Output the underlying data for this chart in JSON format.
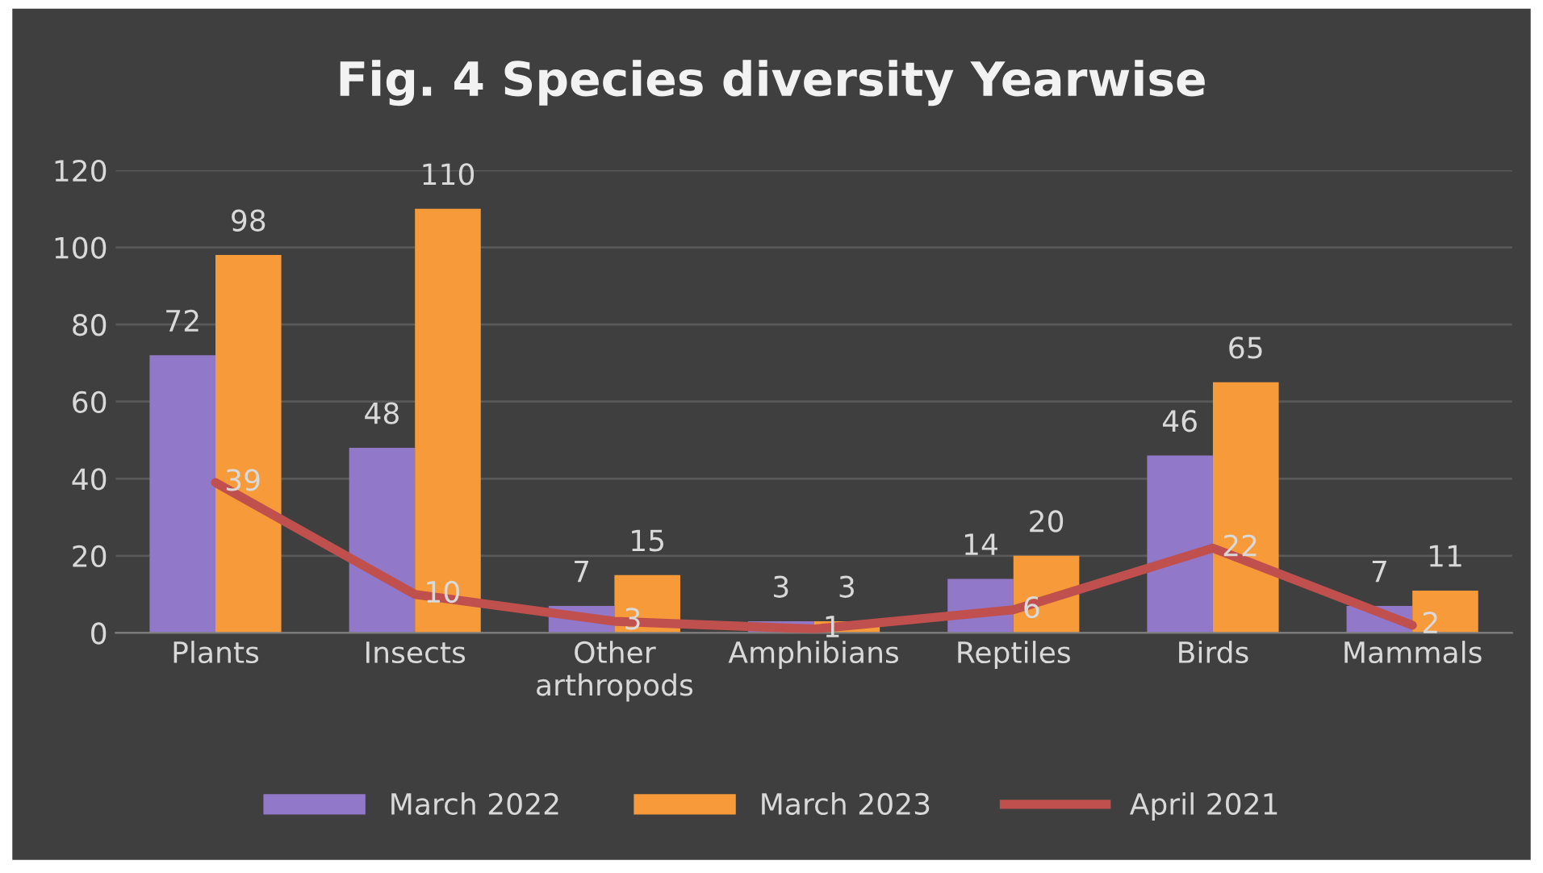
{
  "chart_data": {
    "type": "bar",
    "title": "Fig. 4 Species diversity Yearwise",
    "categories": [
      "Plants",
      "Insects",
      "Other\narthropods",
      "Amphibians",
      "Reptiles",
      "Birds",
      "Mammals"
    ],
    "series": [
      {
        "name": "March 2022",
        "color": "#9278c8",
        "values": [
          72,
          48,
          7,
          3,
          14,
          46,
          7
        ]
      },
      {
        "name": "March 2023",
        "color": "#f79a3a",
        "values": [
          98,
          110,
          15,
          3,
          20,
          65,
          11
        ]
      },
      {
        "name": "April 2021",
        "type": "line",
        "color": "#c0504d",
        "values": [
          39,
          10,
          3,
          1,
          6,
          22,
          2
        ]
      }
    ],
    "ylim": [
      0,
      120
    ],
    "yticks": [
      0,
      20,
      40,
      60,
      80,
      100,
      120
    ],
    "grid": "y",
    "legend": "bottom",
    "data_labels": true,
    "marker": "none",
    "line_style": "solid"
  }
}
